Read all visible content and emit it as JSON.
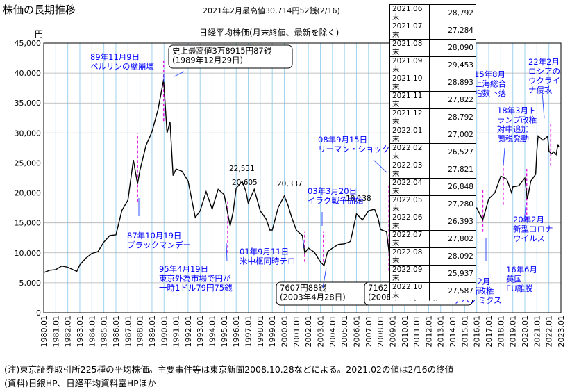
{
  "page_title": "株価の長期推移",
  "record_note": "2021年2月最高値30,714円52銭(2/16)",
  "chart_title": "日経平均株価(月末終値、最新を除く)",
  "y_unit": "円",
  "notes": [
    "(注)東京証券取引所225種の平均株価。主要事件等は東京新聞2008.10.28などによる。2021.02の値は2/16の終値",
    "(資料)日銀HP、日経平均資料室HPほか"
  ],
  "recent_table": [
    {
      "month": "2021.06末",
      "value": "28,792"
    },
    {
      "month": "2021.07末",
      "value": "27,284"
    },
    {
      "month": "2021.08末",
      "value": "28,090"
    },
    {
      "month": "2021.09末",
      "value": "29,453"
    },
    {
      "month": "2021.10末",
      "value": "28,893"
    },
    {
      "month": "2021.11末",
      "value": "27,822"
    },
    {
      "month": "2021.12末",
      "value": "28,792"
    },
    {
      "month": "2022.01末",
      "value": "27,002"
    },
    {
      "month": "2022.02末",
      "value": "26,527"
    },
    {
      "month": "2022.03末",
      "value": "27,821"
    },
    {
      "month": "2022.04末",
      "value": "26,848"
    },
    {
      "month": "2022.05末",
      "value": "27,280"
    },
    {
      "month": "2022.06末",
      "value": "26,393"
    },
    {
      "month": "2022.07末",
      "value": "27,802"
    },
    {
      "month": "2022.08末",
      "value": "28,092"
    },
    {
      "month": "2022.09末",
      "value": "25,937"
    },
    {
      "month": "2022.10末",
      "value": "27,587"
    }
  ],
  "colors": {
    "line": "#000000",
    "grid": "#9fd3f0",
    "event_marker": "#e020e0"
  },
  "chart_data": {
    "type": "line",
    "title": "日経平均株価(月末終値、最新を除く)",
    "ylabel": "円",
    "ylim": [
      0,
      45000
    ],
    "yticks": [
      0,
      5000,
      10000,
      15000,
      20000,
      25000,
      30000,
      35000,
      40000,
      45000
    ],
    "ytick_labels": [
      "0",
      "5,000",
      "10,000",
      "15,000",
      "20,000",
      "25,000",
      "30,000",
      "35,000",
      "40,000",
      "45,000"
    ],
    "xlim": [
      1980.0,
      2023.0
    ],
    "xtick_labels": [
      "1980.01",
      "1981.01",
      "1982.01",
      "1983.01",
      "1984.01",
      "1985.01",
      "1986.01",
      "1987.01",
      "1988.01",
      "1989.01",
      "1990.01",
      "1991.01",
      "1992.01",
      "1993.01",
      "1994.01",
      "1995.01",
      "1996.01",
      "1997.01",
      "1998.01",
      "1999.01",
      "2000.01",
      "2001.01",
      "2002.01",
      "2003.01",
      "2004.01",
      "2005.01",
      "2006.01",
      "2007.01",
      "2008.01",
      "2009.01",
      "2010.01",
      "2011.01",
      "2012.01",
      "2013.01",
      "2014.01",
      "2015.01",
      "2016.01",
      "2017.01",
      "2018.01",
      "2019.01",
      "2020.01",
      "2021.01",
      "2022.01",
      "2023.01"
    ],
    "grid": true,
    "series": [
      {
        "x": [
          1980.0,
          1980.5,
          1981.0,
          1981.5,
          1982.0,
          1982.75,
          1983.0,
          1983.5,
          1984.0,
          1984.5,
          1985.0,
          1985.5,
          1986.0,
          1986.5,
          1987.0,
          1987.45,
          1987.8,
          1988.0,
          1988.5,
          1989.0,
          1989.5,
          1989.97,
          1990.25,
          1990.5,
          1990.75,
          1991.0,
          1991.5,
          1992.0,
          1992.6,
          1993.0,
          1993.5,
          1994.0,
          1994.5,
          1995.0,
          1995.5,
          1995.75,
          1996.0,
          1996.5,
          1996.8,
          1997.0,
          1997.5,
          1998.0,
          1998.5,
          1998.8,
          1999.0,
          1999.5,
          2000.0,
          2000.3,
          2000.6,
          2001.0,
          2001.5,
          2001.7,
          2002.0,
          2002.5,
          2003.0,
          2003.3,
          2003.6,
          2004.0,
          2004.5,
          2005.0,
          2005.5,
          2006.0,
          2006.5,
          2007.0,
          2007.5,
          2007.8,
          2008.0,
          2008.5,
          2008.8,
          2009.2,
          2009.5,
          2010.0,
          2010.5,
          2011.0,
          2011.5,
          2012.0,
          2012.5,
          2012.9,
          2013.0,
          2013.5,
          2014.0,
          2014.5,
          2015.0,
          2015.5,
          2015.8,
          2016.0,
          2016.5,
          2017.0,
          2017.5,
          2018.0,
          2018.5,
          2018.9,
          2019.0,
          2019.5,
          2020.0,
          2020.2,
          2020.5,
          2020.9,
          2021.0,
          2021.1,
          2021.5,
          2021.9,
          2022.0,
          2022.2,
          2022.4,
          2022.6,
          2022.75,
          2022.83
        ],
        "y": [
          6720,
          7100,
          7200,
          7800,
          7600,
          6900,
          8000,
          9100,
          9900,
          10200,
          11800,
          12900,
          13000,
          17100,
          18800,
          25500,
          21500,
          23800,
          27900,
          30200,
          33900,
          38916,
          29980,
          31900,
          22900,
          24000,
          23600,
          22000,
          15900,
          17000,
          20200,
          17300,
          20600,
          19700,
          14500,
          16900,
          20800,
          21900,
          20300,
          18300,
          20600,
          17000,
          15600,
          13800,
          13800,
          17600,
          19500,
          18000,
          16000,
          13800,
          12900,
          10000,
          10800,
          10100,
          8500,
          7860,
          10200,
          10800,
          11400,
          11500,
          11900,
          16500,
          15500,
          17000,
          17300,
          15700,
          13900,
          13500,
          8580,
          7570,
          10000,
          10200,
          9400,
          10300,
          9800,
          8500,
          9000,
          9100,
          11100,
          13700,
          15000,
          15600,
          18500,
          20300,
          17400,
          17500,
          15500,
          19000,
          20000,
          22800,
          22300,
          20000,
          21000,
          21200,
          22500,
          18900,
          22000,
          23100,
          27000,
          29500,
          28800,
          29450,
          27000,
          26500,
          26850,
          26390,
          28100,
          27587
        ]
      }
    ],
    "value_labels": [
      "22,531",
      "20,605",
      "20,337",
      "18,138"
    ],
    "annotations": [
      {
        "text": "89年11月9日\nベルリンの壁崩壊",
        "boxed": false
      },
      {
        "text": "史上最高値3万8915円87銭\n(1989年12月29日)",
        "boxed": true
      },
      {
        "text": "87年10月19日\nブラックマンデー",
        "boxed": false
      },
      {
        "text": "95年4月19日\n東京外為市場で円が\n一時1ドル79円75銭",
        "boxed": false
      },
      {
        "text": "01年9月11日\n米中枢同時テロ",
        "boxed": false
      },
      {
        "text": "03年3月20日\nイラク戦争開始",
        "boxed": false
      },
      {
        "text": "08年9月15日\nリーマン・ショック",
        "boxed": false
      },
      {
        "text": "7607円88銭\n(2003年4月28日)",
        "boxed": true
      },
      {
        "text": "7162円90銭\n(2008年10月27日)",
        "boxed": true
      },
      {
        "text": "12年12月\n安倍新政権\nアベノミクス",
        "boxed": false
      },
      {
        "text": "15年8月\n上海総合\n指数下落",
        "boxed": false
      },
      {
        "text": "16年6月\n英国\nEU離脱",
        "boxed": false
      },
      {
        "text": "18年3月ト\nランプ政権\n対中追加\n関税発動",
        "boxed": false
      },
      {
        "text": "20年2月\n新型コロナ\nウイルス",
        "boxed": false
      },
      {
        "text": "22年2月\nロシアの\nウクライ\nナ侵攻",
        "boxed": false
      }
    ]
  }
}
